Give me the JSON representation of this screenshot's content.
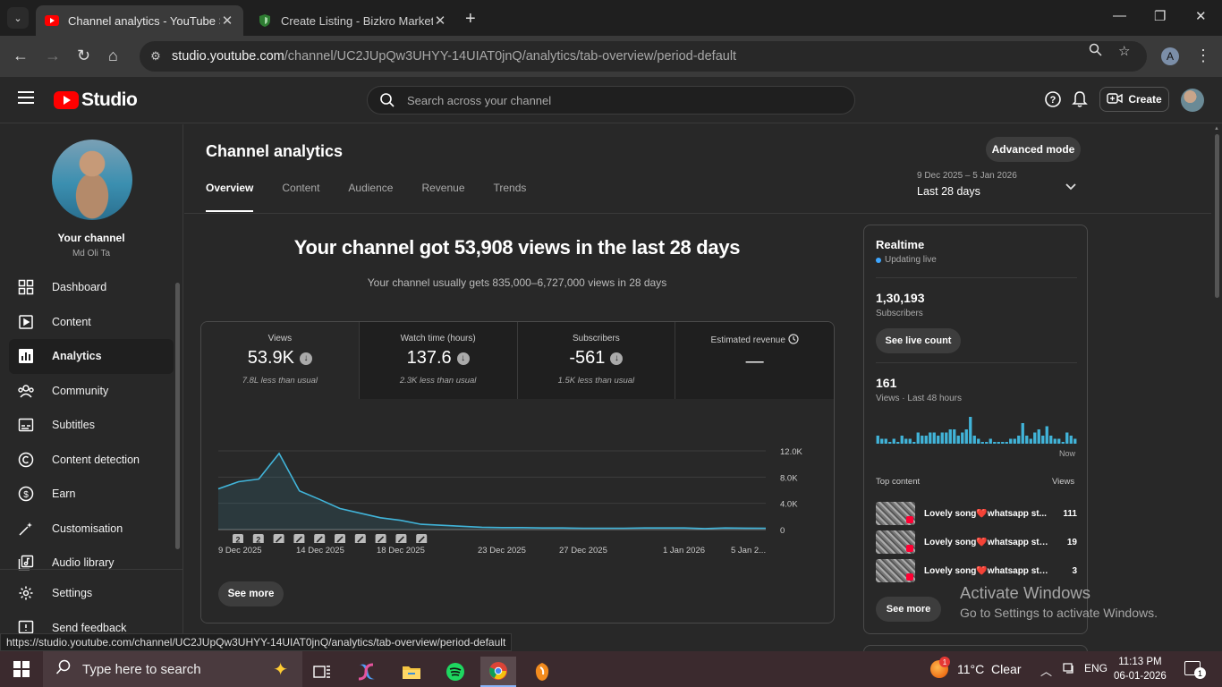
{
  "browser": {
    "tabs": [
      {
        "title": "Channel analytics - YouTube Studio",
        "active": true
      },
      {
        "title": "Create Listing - Bizkro Market",
        "active": false
      }
    ],
    "url_host": "studio.youtube.com",
    "url_path": "/channel/UC2JUpQw3UHYY-14UIAT0jnQ/analytics/tab-overview/period-default",
    "profile_initial": "A",
    "status_url": "https://studio.youtube.com/channel/UC2JUpQw3UHYY-14UIAT0jnQ/analytics/tab-overview/period-default"
  },
  "header": {
    "logo_text": "Studio",
    "search_placeholder": "Search across your channel",
    "create_label": "Create"
  },
  "sidebar": {
    "your_channel": "Your channel",
    "channel_name": "Md Oli Ta",
    "items": [
      {
        "label": "Dashboard",
        "icon": "dashboard-icon"
      },
      {
        "label": "Content",
        "icon": "content-icon"
      },
      {
        "label": "Analytics",
        "icon": "analytics-icon",
        "active": true
      },
      {
        "label": "Community",
        "icon": "community-icon"
      },
      {
        "label": "Subtitles",
        "icon": "subtitles-icon"
      },
      {
        "label": "Content detection",
        "icon": "copyright-icon"
      },
      {
        "label": "Earn",
        "icon": "dollar-icon"
      },
      {
        "label": "Customisation",
        "icon": "wand-icon"
      },
      {
        "label": "Audio library",
        "icon": "audio-library-icon"
      }
    ],
    "bottom_items": [
      {
        "label": "Settings",
        "icon": "gear-icon"
      },
      {
        "label": "Send feedback",
        "icon": "feedback-icon"
      }
    ]
  },
  "main": {
    "title": "Channel analytics",
    "advanced_mode": "Advanced mode",
    "tabs": [
      "Overview",
      "Content",
      "Audience",
      "Revenue",
      "Trends"
    ],
    "date_range": "9 Dec 2025 – 5 Jan 2026",
    "date_label": "Last 28 days",
    "headline": "Your channel got 53,908 views in the last 28 days",
    "subline": "Your channel usually gets 835,000–6,727,000 views in 28 days",
    "see_more": "See more",
    "metrics": [
      {
        "label": "Views",
        "value": "53.9K",
        "sub": "7.8L less than usual",
        "down": true
      },
      {
        "label": "Watch time (hours)",
        "value": "137.6",
        "sub": "2.3K less than usual",
        "down": true
      },
      {
        "label": "Subscribers",
        "value": "-561",
        "sub": "1.5K less than usual",
        "down": true
      },
      {
        "label": "Estimated revenue",
        "value": "—",
        "sub": "",
        "down": false
      }
    ]
  },
  "chart_data": {
    "type": "area",
    "series": [
      {
        "values": [
          6200,
          7300,
          7700,
          11600,
          5900,
          4600,
          3200,
          2500,
          1800,
          1400,
          800,
          650,
          500,
          350,
          300,
          300,
          250,
          250,
          200,
          200,
          200,
          250,
          250,
          250,
          150,
          250,
          220,
          200
        ]
      }
    ],
    "x_tick_labels": [
      "9 Dec 2025",
      "14 Dec 2025",
      "18 Dec 2025",
      "23 Dec 2025",
      "27 Dec 2025",
      "1 Jan 2026",
      "5 Jan 2..."
    ],
    "y_tick_labels": [
      "12.0K",
      "8.0K",
      "4.0K",
      "0"
    ],
    "ylim": [
      0,
      12000
    ],
    "markers": [
      "2",
      "2",
      "upload",
      "upload",
      "upload",
      "upload",
      "upload",
      "upload",
      "upload",
      "upload"
    ],
    "color": "#41b4d9"
  },
  "realtime": {
    "title": "Realtime",
    "live": "Updating live",
    "subscribers": "1,30,193",
    "subscribers_label": "Subscribers",
    "see_live_count": "See live count",
    "views": "161",
    "views_label": "Views · Last 48 hours",
    "now_label": "Now",
    "bars": [
      2,
      1,
      1,
      0,
      1,
      0,
      2,
      1,
      1,
      0,
      3,
      2,
      2,
      3,
      3,
      2,
      3,
      3,
      4,
      4,
      2,
      3,
      4,
      8,
      2,
      1,
      0,
      0,
      1,
      0,
      0,
      0,
      0,
      1,
      1,
      2,
      6,
      2,
      1,
      3,
      4,
      2,
      5,
      2,
      1,
      1,
      0,
      3,
      2,
      1
    ],
    "top_content_label": "Top content",
    "views_col_label": "Views",
    "top_content": [
      {
        "title": "Lovely song❤️whatsapp st...",
        "views": "111"
      },
      {
        "title": "Lovely song❤️whatsapp stat...",
        "views": "19"
      },
      {
        "title": "Lovely song❤️whatsapp statu...",
        "views": "3"
      }
    ],
    "see_more": "See more"
  },
  "watermark": {
    "line1": "Activate Windows",
    "line2": "Go to Settings to activate Windows."
  },
  "taskbar": {
    "search_placeholder": "Type here to search",
    "weather": "11°C  Clear",
    "weather_badge": "1",
    "language": "ENG",
    "time": "11:13 PM",
    "date": "06-01-2026",
    "notif_count": "1"
  }
}
